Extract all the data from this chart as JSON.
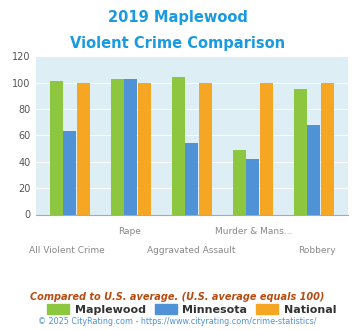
{
  "title_line1": "2019 Maplewood",
  "title_line2": "Violent Crime Comparison",
  "title_color": "#1a9ae0",
  "groups": [
    {
      "name": "All Violent Crime",
      "maplewood": 101,
      "minnesota": 63,
      "national": 100
    },
    {
      "name": "Rape",
      "maplewood": 103,
      "minnesota": 103,
      "national": 100
    },
    {
      "name": "Aggravated Assault",
      "maplewood": 104,
      "minnesota": 54,
      "national": 100
    },
    {
      "name": "Murder & Mans...",
      "maplewood": 49,
      "minnesota": 42,
      "national": 100
    },
    {
      "name": "Robbery",
      "maplewood": 95,
      "minnesota": 68,
      "national": 100
    }
  ],
  "colors": {
    "maplewood": "#8dc63f",
    "minnesota": "#4f92d6",
    "national": "#f5a623"
  },
  "ylim": [
    0,
    120
  ],
  "yticks": [
    0,
    20,
    40,
    60,
    80,
    100,
    120
  ],
  "background_color": "#ddeef5",
  "legend_labels": [
    "Maplewood",
    "Minnesota",
    "National"
  ],
  "top_xlabels": [
    "",
    "Rape",
    "",
    "Murder & Mans...",
    ""
  ],
  "bottom_xlabels": [
    "All Violent Crime",
    "",
    "Aggravated Assault",
    "",
    "Robbery"
  ],
  "footnote1": "Compared to U.S. average. (U.S. average equals 100)",
  "footnote2": "© 2025 CityRating.com - https://www.cityrating.com/crime-statistics/",
  "footnote1_color": "#b84c10",
  "footnote2_color": "#4f92d6"
}
